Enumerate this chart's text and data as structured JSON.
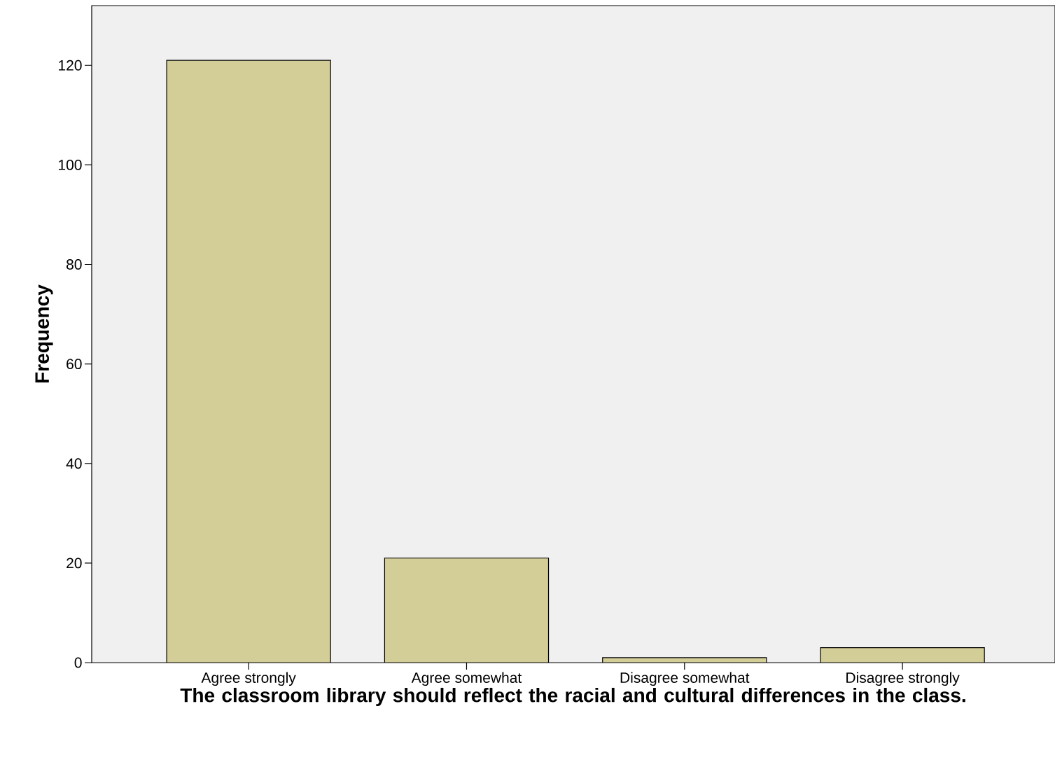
{
  "chart_data": {
    "type": "bar",
    "xlabel": "The classroom library should reflect the racial and cultural differences in the class.",
    "ylabel": "Frequency",
    "categories": [
      "Agree strongly",
      "Agree somewhat",
      "Disagree somewhat",
      "Disagree strongly"
    ],
    "values": [
      121,
      21,
      1,
      3
    ],
    "color": "#d3cd97",
    "ylim": [
      0,
      132
    ],
    "yticks": [
      0,
      20,
      40,
      60,
      80,
      100,
      120
    ]
  }
}
